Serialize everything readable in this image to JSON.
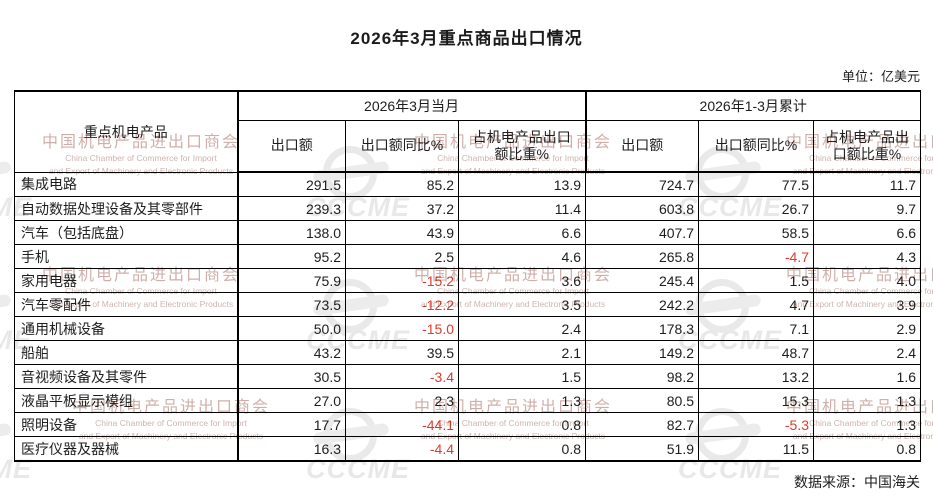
{
  "title": "2026年3月重点商品出口情况",
  "unit_note": "单位：亿美元",
  "source_note": "数据来源：中国海关",
  "colors": {
    "negative_value": "#e03a2c",
    "text": "#1d1d1d",
    "border": "#000000",
    "watermark_text": "#c8a29c",
    "watermark_logo": "#d5d5d5"
  },
  "table": {
    "corner_header": "重点机电产品",
    "groups": [
      {
        "label": "2026年3月当月",
        "columns": [
          "出口额",
          "出口额同比%",
          "占机电产品出口\n额比重%"
        ]
      },
      {
        "label": "2026年1-3月累计",
        "columns": [
          "出口额",
          "出口额同比%",
          "占机电产品出\n口额比重%"
        ]
      }
    ],
    "rows": [
      {
        "product": "集成电路",
        "values": [
          "291.5",
          "85.2",
          "13.9",
          "724.7",
          "77.5",
          "11.7"
        ]
      },
      {
        "product": "自动数据处理设备及其零部件",
        "values": [
          "239.3",
          "37.2",
          "11.4",
          "603.8",
          "26.7",
          "9.7"
        ]
      },
      {
        "product": "汽车（包括底盘）",
        "values": [
          "138.0",
          "43.9",
          "6.6",
          "407.7",
          "58.5",
          "6.6"
        ]
      },
      {
        "product": "手机",
        "values": [
          "95.2",
          "2.5",
          "4.6",
          "265.8",
          "-4.7",
          "4.3"
        ]
      },
      {
        "product": "家用电器",
        "values": [
          "75.9",
          "-15.2",
          "3.6",
          "245.4",
          "1.5",
          "4.0"
        ]
      },
      {
        "product": "汽车零配件",
        "values": [
          "73.5",
          "-12.2",
          "3.5",
          "242.2",
          "4.7",
          "3.9"
        ]
      },
      {
        "product": "通用机械设备",
        "values": [
          "50.0",
          "-15.0",
          "2.4",
          "178.3",
          "7.1",
          "2.9"
        ]
      },
      {
        "product": "船舶",
        "values": [
          "43.2",
          "39.5",
          "2.1",
          "149.2",
          "48.7",
          "2.4"
        ]
      },
      {
        "product": "音视频设备及其零件",
        "values": [
          "30.5",
          "-3.4",
          "1.5",
          "98.2",
          "13.2",
          "1.6"
        ]
      },
      {
        "product": "液晶平板显示模组",
        "values": [
          "27.0",
          "2.3",
          "1.3",
          "80.5",
          "15.3",
          "1.3"
        ]
      },
      {
        "product": "照明设备",
        "values": [
          "17.7",
          "-44.1",
          "0.8",
          "82.7",
          "-5.3",
          "1.3"
        ]
      },
      {
        "product": "医疗仪器及器械",
        "values": [
          "16.3",
          "-4.4",
          "0.8",
          "51.9",
          "11.5",
          "0.8"
        ]
      }
    ]
  },
  "watermark": {
    "cn": "中国机电产品进出口商会",
    "en1": "China Chamber of Commerce for Import",
    "en2": "and Export of Machinery and Electronic Products",
    "logo_text": "CCCME"
  }
}
